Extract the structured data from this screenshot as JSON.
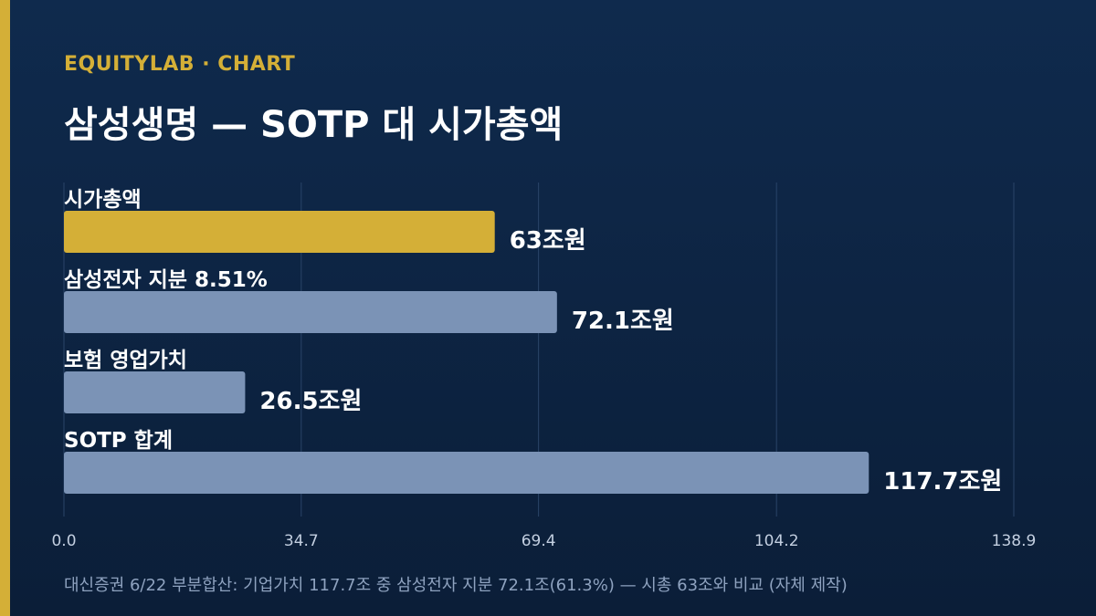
{
  "header": {
    "eyebrow": "EQUITYLAB · CHART",
    "title": "삼성생명 — SOTP 대 시가총액"
  },
  "footer": {
    "source": "대신증권 6/22 부분합산: 기업가치 117.7조 중 삼성전자 지분 72.1조(61.3%) — 시총 63조와 비교 (자체 제작)"
  },
  "colors": {
    "background": "#0f2a4d",
    "accent": "#d4af37",
    "bar_default": "#7b93b6",
    "grid": "#2a4468",
    "tick_text": "#c3cfe0"
  },
  "chart_data": {
    "type": "bar",
    "orientation": "horizontal",
    "categories": [
      "시가총액",
      "삼성전자 지분 8.51%",
      "보험 영업가치",
      "SOTP 합계"
    ],
    "values": [
      63,
      72.1,
      26.5,
      117.7
    ],
    "value_labels": [
      "63조원",
      "72.1조원",
      "26.5조원",
      "117.7조원"
    ],
    "highlight": [
      true,
      false,
      false,
      false
    ],
    "xlim": [
      0,
      138.9
    ],
    "xticks": [
      "0.0",
      "34.7",
      "69.4",
      "104.2",
      "138.9"
    ],
    "xtick_values": [
      0,
      34.7,
      69.4,
      104.2,
      138.9
    ],
    "grid": true,
    "title": "삼성생명 — SOTP 대 시가총액",
    "xlabel": "",
    "ylabel": ""
  }
}
